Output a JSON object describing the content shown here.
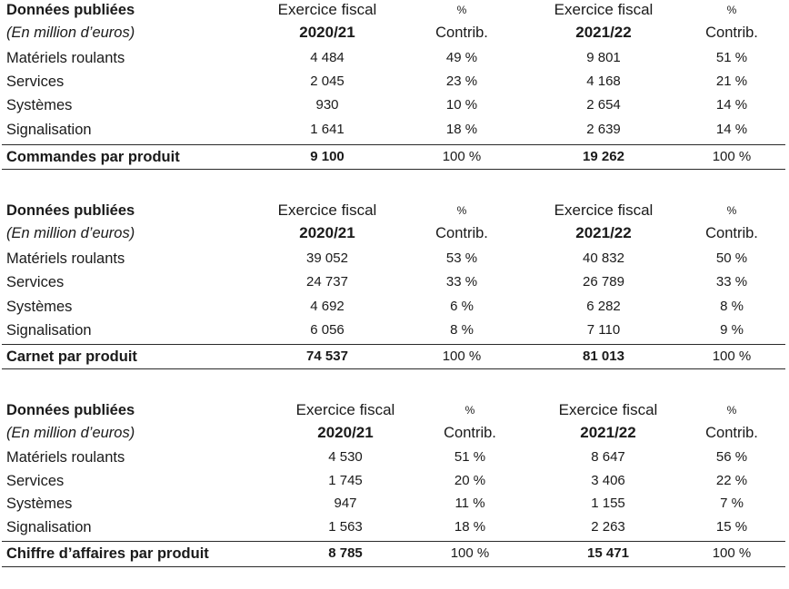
{
  "tables": [
    {
      "header": {
        "label": "Données publiées",
        "sublabel": "(En million d’euros)",
        "period1": "Exercice fiscal",
        "year1": "2020/21",
        "pct_symbol1": "%",
        "contrib1": "Contrib.",
        "period2": "Exercice fiscal",
        "year2": "2021/22",
        "pct_symbol2": "%",
        "contrib2": "Contrib."
      },
      "rows": [
        {
          "label": "Matériels roulants",
          "v1": "4 484",
          "p1": "49 %",
          "v2": "9 801",
          "p2": "51 %"
        },
        {
          "label": "Services",
          "v1": "2 045",
          "p1": "23 %",
          "v2": "4 168",
          "p2": "21 %"
        },
        {
          "label": "Systèmes",
          "v1": "930",
          "p1": "10 %",
          "v2": "2 654",
          "p2": "14 %"
        },
        {
          "label": "Signalisation",
          "v1": "1 641",
          "p1": "18 %",
          "v2": "2 639",
          "p2": "14 %"
        }
      ],
      "total": {
        "label": "Commandes par produit",
        "v1": "9 100",
        "p1": "100 %",
        "v2": "19 262",
        "p2": "100 %"
      }
    },
    {
      "header": {
        "label": "Données publiées",
        "sublabel": "(En million d’euros)",
        "period1": "Exercice fiscal",
        "year1": "2020/21",
        "pct_symbol1": "%",
        "contrib1": "Contrib.",
        "period2": "Exercice fiscal",
        "year2": "2021/22",
        "pct_symbol2": "%",
        "contrib2": "Contrib."
      },
      "rows": [
        {
          "label": "Matériels roulants",
          "v1": "39 052",
          "p1": "53 %",
          "v2": "40 832",
          "p2": "50 %"
        },
        {
          "label": "Services",
          "v1": "24 737",
          "p1": "33 %",
          "v2": "26 789",
          "p2": "33 %"
        },
        {
          "label": "Systèmes",
          "v1": "4 692",
          "p1": "6 %",
          "v2": "6 282",
          "p2": "8 %"
        },
        {
          "label": "Signalisation",
          "v1": "6 056",
          "p1": "8 %",
          "v2": "7 110",
          "p2": "9 %"
        }
      ],
      "total": {
        "label": "Carnet par produit",
        "v1": "74 537",
        "p1": "100 %",
        "v2": "81 013",
        "p2": "100 %"
      }
    },
    {
      "header": {
        "label": "Données publiées",
        "sublabel": "(En million d’euros)",
        "period1": "Exercice fiscal",
        "year1": "2020/21",
        "pct_symbol1": "%",
        "contrib1": "Contrib.",
        "period2": "Exercice fiscal",
        "year2": "2021/22",
        "pct_symbol2": "%",
        "contrib2": "Contrib."
      },
      "rows": [
        {
          "label": "Matériels roulants",
          "v1": "4 530",
          "p1": "51 %",
          "v2": "8 647",
          "p2": "56 %"
        },
        {
          "label": "Services",
          "v1": "1 745",
          "p1": "20 %",
          "v2": "3 406",
          "p2": "22 %"
        },
        {
          "label": "Systèmes",
          "v1": "947",
          "p1": "11 %",
          "v2": "1 155",
          "p2": "7 %"
        },
        {
          "label": "Signalisation",
          "v1": "1 563",
          "p1": "18 %",
          "v2": "2 263",
          "p2": "15 %"
        }
      ],
      "total": {
        "label": "Chiffre d’affaires par produit",
        "v1": "8 785",
        "p1": "100 %",
        "v2": "15 471",
        "p2": "100 %"
      }
    }
  ]
}
